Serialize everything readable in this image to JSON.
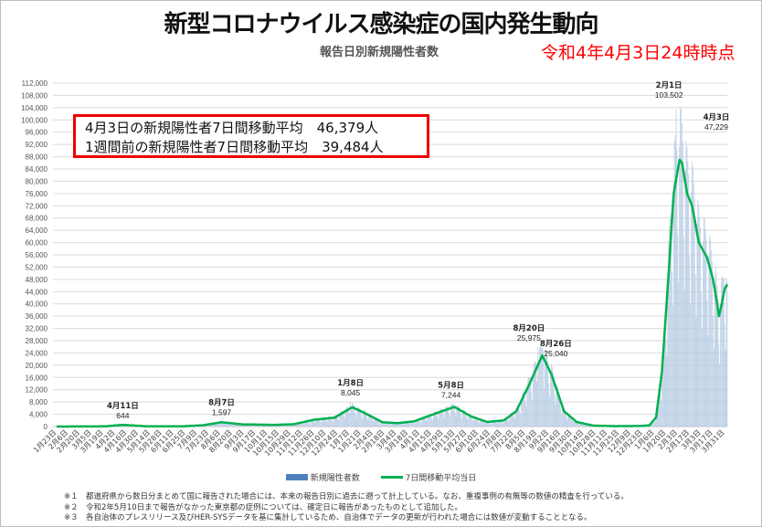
{
  "title": "新型コロナウイルス感染症の国内発生動向",
  "subtitle": "報告日別新規陽性者数",
  "as_of": "令和4年4月3日24時時点",
  "summary_box": {
    "line1": "4月3日の新規陽性者7日間移動平均　46,379人",
    "line2": "1週間前の新規陽性者7日間移動平均　39,484人"
  },
  "legend": {
    "bars": "新規陽性者数",
    "line": "7日間移動平均当日"
  },
  "footnotes": [
    {
      "mark": "※１",
      "text": "都道府県から数日分まとめて国に報告された場合には、本来の報告日別に過去に遡って計上している。なお、重複事例の有無等の数値の精査を行っている。"
    },
    {
      "mark": "※２",
      "text": "令和2年5月10日まで報告がなかった東京都の症例については、確定日に報告があったものとして追加した。"
    },
    {
      "mark": "※３",
      "text": "各自治体のプレスリリース及びHER-SYSデータを基に集計しているため、自治体でデータの更新が行われた場合には数値が変動することとなる。"
    }
  ],
  "colors": {
    "bars": "#b8cce4",
    "line": "#00b050",
    "box_border": "#ee0000",
    "as_of": "#ff0000"
  },
  "chart_data": {
    "type": "bar+line",
    "title": "報告日別新規陽性者数",
    "ylim": [
      0,
      112000
    ],
    "y_ticks": [
      "0",
      "4,000",
      "8,000",
      "12,000",
      "16,000",
      "20,000",
      "24,000",
      "28,000",
      "32,000",
      "36,000",
      "40,000",
      "44,000",
      "48,000",
      "52,000",
      "56,000",
      "60,000",
      "64,000",
      "68,000",
      "72,000",
      "76,000",
      "80,000",
      "84,000",
      "88,000",
      "92,000",
      "96,000",
      "100,000",
      "104,000",
      "108,000",
      "112,000"
    ],
    "grid": true,
    "legend_position": "bottom",
    "x_range": [
      "2020-01-23",
      "2022-04-03"
    ],
    "x_ticks": [
      {
        "date": "2020-01-23",
        "label": "1月23日"
      },
      {
        "date": "2020-02-06",
        "label": "2月6日"
      },
      {
        "date": "2020-02-20",
        "label": "2月20日"
      },
      {
        "date": "2020-03-05",
        "label": "3月5日"
      },
      {
        "date": "2020-03-19",
        "label": "3月19日"
      },
      {
        "date": "2020-04-02",
        "label": "4月2日"
      },
      {
        "date": "2020-04-16",
        "label": "4月16日"
      },
      {
        "date": "2020-04-30",
        "label": "4月30日"
      },
      {
        "date": "2020-05-14",
        "label": "5月14日"
      },
      {
        "date": "2020-05-28",
        "label": "5月28日"
      },
      {
        "date": "2020-06-11",
        "label": "6月11日"
      },
      {
        "date": "2020-06-25",
        "label": "6月25日"
      },
      {
        "date": "2020-07-09",
        "label": "7月9日"
      },
      {
        "date": "2020-07-23",
        "label": "7月23日"
      },
      {
        "date": "2020-08-06",
        "label": "8月6日"
      },
      {
        "date": "2020-08-20",
        "label": "8月20日"
      },
      {
        "date": "2020-09-03",
        "label": "9月3日"
      },
      {
        "date": "2020-09-17",
        "label": "9月17日"
      },
      {
        "date": "2020-10-01",
        "label": "10月1日"
      },
      {
        "date": "2020-10-15",
        "label": "10月15日"
      },
      {
        "date": "2020-10-29",
        "label": "10月29日"
      },
      {
        "date": "2020-11-12",
        "label": "11月12日"
      },
      {
        "date": "2020-11-26",
        "label": "11月26日"
      },
      {
        "date": "2020-12-10",
        "label": "12月10日"
      },
      {
        "date": "2020-12-24",
        "label": "12月24日"
      },
      {
        "date": "2021-01-07",
        "label": "1月7日"
      },
      {
        "date": "2021-01-21",
        "label": "1月21日"
      },
      {
        "date": "2021-02-04",
        "label": "2月4日"
      },
      {
        "date": "2021-02-18",
        "label": "2月18日"
      },
      {
        "date": "2021-03-04",
        "label": "3月4日"
      },
      {
        "date": "2021-03-18",
        "label": "3月18日"
      },
      {
        "date": "2021-04-01",
        "label": "4月1日"
      },
      {
        "date": "2021-04-15",
        "label": "4月15日"
      },
      {
        "date": "2021-04-29",
        "label": "4月29日"
      },
      {
        "date": "2021-05-13",
        "label": "5月13日"
      },
      {
        "date": "2021-05-27",
        "label": "5月27日"
      },
      {
        "date": "2021-06-10",
        "label": "6月10日"
      },
      {
        "date": "2021-06-24",
        "label": "6月24日"
      },
      {
        "date": "2021-07-08",
        "label": "7月8日"
      },
      {
        "date": "2021-07-22",
        "label": "7月22日"
      },
      {
        "date": "2021-08-05",
        "label": "8月5日"
      },
      {
        "date": "2021-08-19",
        "label": "8月19日"
      },
      {
        "date": "2021-09-02",
        "label": "9月2日"
      },
      {
        "date": "2021-09-16",
        "label": "9月16日"
      },
      {
        "date": "2021-09-30",
        "label": "9月30日"
      },
      {
        "date": "2021-10-14",
        "label": "10月14日"
      },
      {
        "date": "2021-10-28",
        "label": "10月28日"
      },
      {
        "date": "2021-11-11",
        "label": "11月11日"
      },
      {
        "date": "2021-11-25",
        "label": "11月25日"
      },
      {
        "date": "2021-12-09",
        "label": "12月9日"
      },
      {
        "date": "2021-12-23",
        "label": "12月23日"
      },
      {
        "date": "2022-01-06",
        "label": "1月6日"
      },
      {
        "date": "2022-01-20",
        "label": "1月20日"
      },
      {
        "date": "2022-02-03",
        "label": "2月3日"
      },
      {
        "date": "2022-02-17",
        "label": "2月17日"
      },
      {
        "date": "2022-03-03",
        "label": "3月3日"
      },
      {
        "date": "2022-03-17",
        "label": "3月17日"
      },
      {
        "date": "2022-03-31",
        "label": "3月31日"
      }
    ],
    "series": [
      {
        "name": "7日間移動平均当日",
        "type": "line",
        "points": [
          [
            "2020-01-23",
            0
          ],
          [
            "2020-03-20",
            50
          ],
          [
            "2020-04-11",
            550
          ],
          [
            "2020-05-10",
            60
          ],
          [
            "2020-06-20",
            60
          ],
          [
            "2020-07-15",
            400
          ],
          [
            "2020-08-07",
            1400
          ],
          [
            "2020-09-01",
            700
          ],
          [
            "2020-10-10",
            550
          ],
          [
            "2020-11-01",
            750
          ],
          [
            "2020-11-25",
            2200
          ],
          [
            "2020-12-20",
            2900
          ],
          [
            "2021-01-10",
            6300
          ],
          [
            "2021-01-25",
            4400
          ],
          [
            "2021-02-15",
            1400
          ],
          [
            "2021-03-05",
            1100
          ],
          [
            "2021-03-25",
            1700
          ],
          [
            "2021-04-20",
            4300
          ],
          [
            "2021-05-12",
            6400
          ],
          [
            "2021-06-01",
            3300
          ],
          [
            "2021-06-20",
            1500
          ],
          [
            "2021-07-10",
            2000
          ],
          [
            "2021-07-25",
            5000
          ],
          [
            "2021-08-10",
            14000
          ],
          [
            "2021-08-25",
            23200
          ],
          [
            "2021-09-05",
            17000
          ],
          [
            "2021-09-20",
            5000
          ],
          [
            "2021-10-05",
            1500
          ],
          [
            "2021-10-25",
            300
          ],
          [
            "2021-11-20",
            130
          ],
          [
            "2021-12-20",
            180
          ],
          [
            "2021-12-31",
            400
          ],
          [
            "2022-01-08",
            3000
          ],
          [
            "2022-01-15",
            18000
          ],
          [
            "2022-01-22",
            46000
          ],
          [
            "2022-01-29",
            76000
          ],
          [
            "2022-02-05",
            87000
          ],
          [
            "2022-02-08",
            86000
          ],
          [
            "2022-02-14",
            76000
          ],
          [
            "2022-02-20",
            72000
          ],
          [
            "2022-02-28",
            60000
          ],
          [
            "2022-03-10",
            55000
          ],
          [
            "2022-03-17",
            48000
          ],
          [
            "2022-03-22",
            40000
          ],
          [
            "2022-03-24",
            36000
          ],
          [
            "2022-03-27",
            39500
          ],
          [
            "2022-03-31",
            45000
          ],
          [
            "2022-04-03",
            46379
          ]
        ]
      },
      {
        "name": "新規陽性者数",
        "type": "bar",
        "note_points": [
          [
            "2020-04-11",
            644
          ],
          [
            "2020-08-07",
            1597
          ],
          [
            "2021-01-08",
            8045
          ],
          [
            "2021-05-08",
            7244
          ],
          [
            "2021-08-20",
            25975
          ],
          [
            "2021-08-26",
            25040
          ],
          [
            "2022-02-01",
            103502
          ],
          [
            "2022-04-03",
            47229
          ]
        ]
      }
    ],
    "annotations": [
      {
        "date": "2020-04-11",
        "label": "4月11日",
        "value": "644"
      },
      {
        "date": "2020-08-07",
        "label": "8月7日",
        "value": "1,597"
      },
      {
        "date": "2021-01-08",
        "label": "1月8日",
        "value": "8,045"
      },
      {
        "date": "2021-05-08",
        "label": "5月8日",
        "value": "7,244"
      },
      {
        "date": "2021-08-20",
        "label": "8月20日",
        "value": "25,975"
      },
      {
        "date": "2021-08-26",
        "label": "8月26日",
        "value": "25,040"
      },
      {
        "date": "2022-02-01",
        "label": "2月1日",
        "value": "103,502"
      },
      {
        "date": "2022-04-03",
        "label": "4月3日",
        "value": "47,229"
      }
    ]
  }
}
